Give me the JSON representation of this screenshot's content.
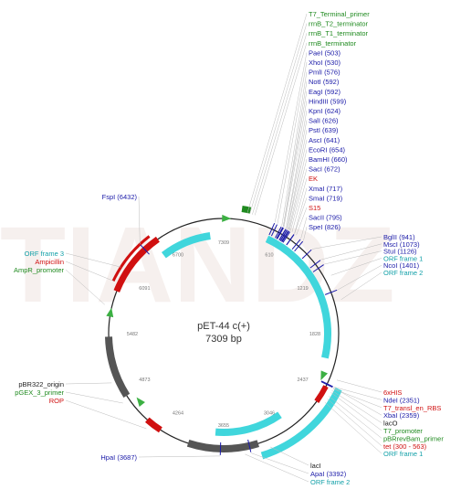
{
  "plasmid": {
    "name": "pET-44 c(+)",
    "size_label": "7309 bp",
    "length_bp": 7309,
    "watermark": "TIANDZ"
  },
  "colors": {
    "backbone": "#222222",
    "site_blue": "#1a1aa8",
    "feature_green": "#1f8a1f",
    "feature_red": "#d01010",
    "feature_teal": "#12a0a8",
    "orf_cyan": "#40d6dc",
    "ori_gray": "#555555",
    "arrow_green": "#3cb043",
    "promoter_green": "#48b848",
    "leader": "#bbbbbb"
  },
  "position_ticks": [
    "7309",
    "610",
    "1219",
    "1828",
    "2437",
    "3046",
    "3655",
    "4264",
    "4873",
    "5482",
    "6091",
    "6700"
  ],
  "labels_top": [
    {
      "text": "T7_Terminal_primer",
      "color": "green",
      "bp": 225
    },
    {
      "text": "rrnB_T2_terminator",
      "color": "green",
      "bp": 250
    },
    {
      "text": "rrnB_T1_terminator",
      "color": "green",
      "bp": 275
    },
    {
      "text": "rrnB_terminator",
      "color": "green",
      "bp": 300
    },
    {
      "text": "PaeI (503)",
      "color": "blue",
      "bp": 503
    },
    {
      "text": "XhoI (530)",
      "color": "blue",
      "bp": 530
    },
    {
      "text": "PmlI (576)",
      "color": "blue",
      "bp": 576
    },
    {
      "text": "NotI (592)",
      "color": "blue",
      "bp": 592
    },
    {
      "text": "EagI (592)",
      "color": "blue",
      "bp": 592
    },
    {
      "text": "HindIII (599)",
      "color": "blue",
      "bp": 599
    },
    {
      "text": "KpnI (624)",
      "color": "blue",
      "bp": 624
    },
    {
      "text": "SalI (626)",
      "color": "blue",
      "bp": 626
    },
    {
      "text": "PstI (639)",
      "color": "blue",
      "bp": 639
    },
    {
      "text": "AscI (641)",
      "color": "blue",
      "bp": 641
    },
    {
      "text": "EcoRI (654)",
      "color": "blue",
      "bp": 654
    },
    {
      "text": "BamHI (660)",
      "color": "blue",
      "bp": 660
    },
    {
      "text": "SacI (672)",
      "color": "blue",
      "bp": 672
    },
    {
      "text": "EK",
      "color": "red",
      "bp": 690
    },
    {
      "text": "XmaI (717)",
      "color": "blue",
      "bp": 717
    },
    {
      "text": "SmaI (719)",
      "color": "blue",
      "bp": 719
    },
    {
      "text": "S15",
      "color": "red",
      "bp": 740
    },
    {
      "text": "SacII (795)",
      "color": "blue",
      "bp": 795
    },
    {
      "text": "SpeI (826)",
      "color": "blue",
      "bp": 826
    }
  ],
  "labels_right": [
    {
      "text": "BglII (941)",
      "color": "blue",
      "bp": 941
    },
    {
      "text": "MscI (1073)",
      "color": "blue",
      "bp": 1073
    },
    {
      "text": "StuI (1126)",
      "color": "blue",
      "bp": 1126
    },
    {
      "text": "ORF frame 1",
      "color": "teal",
      "bp": 1250
    },
    {
      "text": "NcoI (1401)",
      "color": "blue",
      "bp": 1401
    },
    {
      "text": "ORF frame 2",
      "color": "teal",
      "bp": 1500
    }
  ],
  "labels_lower_right": [
    {
      "text": "6xHIS",
      "color": "red",
      "bp": 2280
    },
    {
      "text": "NdeI (2351)",
      "color": "blue",
      "bp": 2351
    },
    {
      "text": "T7_transl_en_RBS",
      "color": "red",
      "bp": 2370
    },
    {
      "text": "XbaI (2359)",
      "color": "blue",
      "bp": 2359
    },
    {
      "text": "lacO",
      "color": "black",
      "bp": 2390
    },
    {
      "text": "T7_promoter",
      "color": "green",
      "bp": 2410
    },
    {
      "text": "pBRrevBam_primer",
      "color": "green",
      "bp": 2450
    },
    {
      "text": "tet (300 - 563)",
      "color": "red",
      "bp": 2480
    },
    {
      "text": "ORF frame 1",
      "color": "teal",
      "bp": 2520
    }
  ],
  "labels_bottom_right": [
    {
      "text": "lacI",
      "color": "black",
      "bp": 3200
    },
    {
      "text": "ApaI (3392)",
      "color": "blue",
      "bp": 3392
    },
    {
      "text": "ORF frame 2",
      "color": "teal",
      "bp": 3450
    }
  ],
  "labels_left_upper": [
    {
      "text": "FspI (6432)",
      "color": "blue",
      "bp": 6432
    }
  ],
  "labels_left_mid": [
    {
      "text": "ORF frame 3",
      "color": "teal",
      "bp": 6150
    },
    {
      "text": "Ampicillin",
      "color": "red",
      "bp": 6000
    },
    {
      "text": "AmpR_promoter",
      "color": "green",
      "bp": 5760
    }
  ],
  "labels_left_lower": [
    {
      "text": "pBR322_origin",
      "color": "black",
      "bp": 5000
    },
    {
      "text": "pGEX_3_primer",
      "color": "green",
      "bp": 4780
    },
    {
      "text": "ROP",
      "color": "red",
      "bp": 4450
    }
  ],
  "labels_bottom_left": [
    {
      "text": "HpaI (3687)",
      "color": "blue",
      "bp": 3687
    }
  ]
}
